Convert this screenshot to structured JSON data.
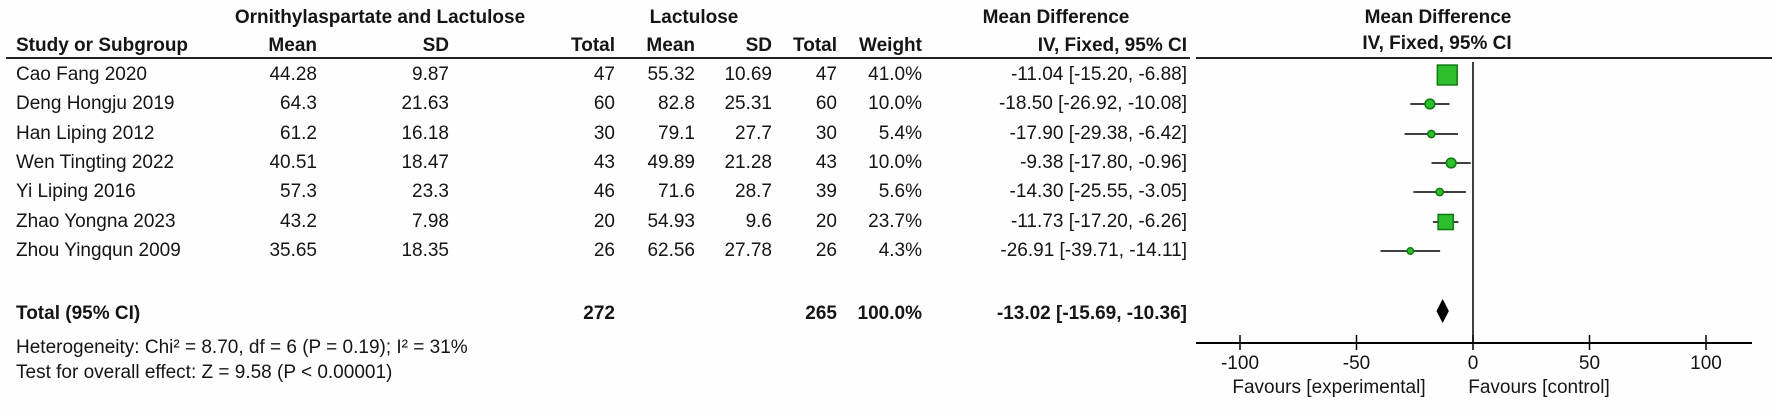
{
  "table": {
    "group1_header": "Ornithylaspartate and Lactulose",
    "group2_header": "Lactulose",
    "md_col_title": "Mean Difference",
    "plot_col_title": "Mean Difference",
    "plot_col_sub": "IV, Fixed, 95% CI",
    "headers": {
      "study": "Study or Subgroup",
      "mean1": "Mean",
      "sd1": "SD",
      "total1": "Total",
      "mean2": "Mean",
      "sd2": "SD",
      "total2": "Total",
      "weight": "Weight",
      "ci": "IV, Fixed, 95% CI"
    },
    "rows": [
      {
        "study": "Cao Fang 2020",
        "mean1": "44.28",
        "sd1": "9.87",
        "total1": "47",
        "mean2": "55.32",
        "sd2": "10.69",
        "total2": "47",
        "weight": "41.0%",
        "ci": "-11.04 [-15.20, -6.88]"
      },
      {
        "study": "Deng Hongju 2019",
        "mean1": "64.3",
        "sd1": "21.63",
        "total1": "60",
        "mean2": "82.8",
        "sd2": "25.31",
        "total2": "60",
        "weight": "10.0%",
        "ci": "-18.50 [-26.92, -10.08]"
      },
      {
        "study": "Han Liping 2012",
        "mean1": "61.2",
        "sd1": "16.18",
        "total1": "30",
        "mean2": "79.1",
        "sd2": "27.7",
        "total2": "30",
        "weight": "5.4%",
        "ci": "-17.90 [-29.38, -6.42]"
      },
      {
        "study": "Wen Tingting 2022",
        "mean1": "40.51",
        "sd1": "18.47",
        "total1": "43",
        "mean2": "49.89",
        "sd2": "21.28",
        "total2": "43",
        "weight": "10.0%",
        "ci": "-9.38 [-17.80, -0.96]"
      },
      {
        "study": "Yi Liping 2016",
        "mean1": "57.3",
        "sd1": "23.3",
        "total1": "46",
        "mean2": "71.6",
        "sd2": "28.7",
        "total2": "39",
        "weight": "5.6%",
        "ci": "-14.30 [-25.55, -3.05]"
      },
      {
        "study": "Zhao Yongna 2023",
        "mean1": "43.2",
        "sd1": "7.98",
        "total1": "20",
        "mean2": "54.93",
        "sd2": "9.6",
        "total2": "20",
        "weight": "23.7%",
        "ci": "-11.73 [-17.20, -6.26]"
      },
      {
        "study": "Zhou Yingqun 2009",
        "mean1": "35.65",
        "sd1": "18.35",
        "total1": "26",
        "mean2": "62.56",
        "sd2": "27.78",
        "total2": "26",
        "weight": "4.3%",
        "ci": "-26.91 [-39.71, -14.11]"
      }
    ],
    "total_row": {
      "study": "Total (95% CI)",
      "total1": "272",
      "total2": "265",
      "weight": "100.0%",
      "ci": "-13.02 [-15.69, -10.36]"
    },
    "heterogeneity": "Heterogeneity: Chi² = 8.70, df = 6 (P = 0.19); I² = 31%",
    "overall_effect": "Test for overall effect: Z = 9.58 (P < 0.00001)"
  },
  "chart_data": {
    "type": "forest",
    "effect_measure": "Mean Difference, IV, Fixed, 95% CI",
    "x_axis": {
      "ticks": [
        -100,
        -50,
        0,
        50,
        100
      ],
      "tick_labels": [
        "-100",
        "-50",
        "0",
        "50",
        "100"
      ],
      "range": [
        -119,
        120
      ],
      "zero_line": 0
    },
    "favours_left": "Favours [experimental]",
    "favours_right": "Favours [control]",
    "studies": [
      {
        "name": "Cao Fang 2020",
        "md": -11.04,
        "ci_low": -15.2,
        "ci_high": -6.88,
        "weight": 41.0
      },
      {
        "name": "Deng Hongju 2019",
        "md": -18.5,
        "ci_low": -26.92,
        "ci_high": -10.08,
        "weight": 10.0
      },
      {
        "name": "Han Liping 2012",
        "md": -17.9,
        "ci_low": -29.38,
        "ci_high": -6.42,
        "weight": 5.4
      },
      {
        "name": "Wen Tingting 2022",
        "md": -9.38,
        "ci_low": -17.8,
        "ci_high": -0.96,
        "weight": 10.0
      },
      {
        "name": "Yi Liping 2016",
        "md": -14.3,
        "ci_low": -25.55,
        "ci_high": -3.05,
        "weight": 5.6
      },
      {
        "name": "Zhao Yongna 2023",
        "md": -11.73,
        "ci_low": -17.2,
        "ci_high": -6.26,
        "weight": 23.7
      },
      {
        "name": "Zhou Yingqun 2009",
        "md": -26.91,
        "ci_low": -39.71,
        "ci_high": -14.11,
        "weight": 4.3
      }
    ],
    "total": {
      "md": -13.02,
      "ci_low": -15.69,
      "ci_high": -10.36
    },
    "colors": {
      "marker_fill": "#2dbf2d",
      "marker_stroke": "#0f7a0f",
      "diamond_fill": "#000000",
      "line_color": "#000000"
    }
  }
}
